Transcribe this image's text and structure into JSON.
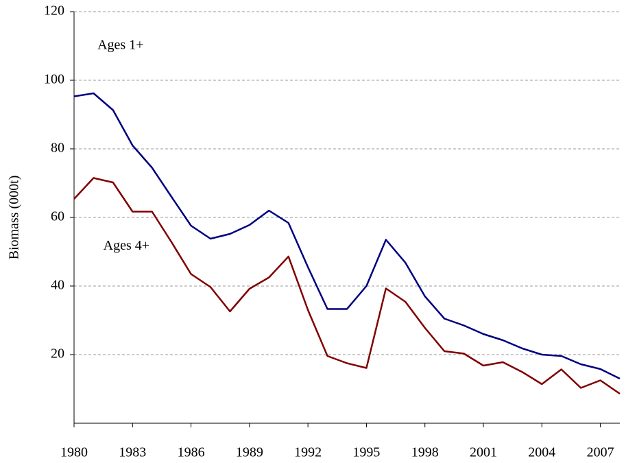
{
  "chart_data": {
    "type": "line",
    "y_label": "Biomass (000t)",
    "x": [
      1980,
      1981,
      1982,
      1983,
      1984,
      1985,
      1986,
      1987,
      1988,
      1989,
      1990,
      1991,
      1992,
      1993,
      1994,
      1995,
      1996,
      1997,
      1998,
      1999,
      2000,
      2001,
      2002,
      2003,
      2004,
      2005,
      2006,
      2007,
      2008
    ],
    "series": [
      {
        "name": "Ages 1+",
        "color": "#000080",
        "values": [
          95.3,
          96.2,
          91.3,
          81,
          74.5,
          66,
          57.6,
          53.8,
          55.2,
          57.8,
          62,
          58.4,
          45.5,
          33.3,
          33.3,
          40,
          53.5,
          46.8,
          37,
          30.5,
          28.5,
          26,
          24.2,
          21.8,
          20,
          19.6,
          17.2,
          15.8,
          13
        ]
      },
      {
        "name": "Ages 4+",
        "color": "#800000",
        "values": [
          65.4,
          71.5,
          70.2,
          61.7,
          61.7,
          52.8,
          43.5,
          39.7,
          32.6,
          39.2,
          42.5,
          48.6,
          33,
          19.6,
          17.5,
          16.1,
          39.3,
          35.4,
          27.8,
          21,
          20.3,
          16.8,
          17.8,
          14.9,
          11.4,
          15.7,
          10.3,
          12.5,
          8.6
        ]
      }
    ],
    "xlim": [
      1980,
      2008
    ],
    "xticks": [
      1980,
      1983,
      1986,
      1989,
      1992,
      1995,
      1998,
      2001,
      2004,
      2007
    ],
    "ylim": [
      0,
      120
    ],
    "yticks": [
      20,
      40,
      60,
      80,
      100,
      120
    ],
    "grid": true
  }
}
